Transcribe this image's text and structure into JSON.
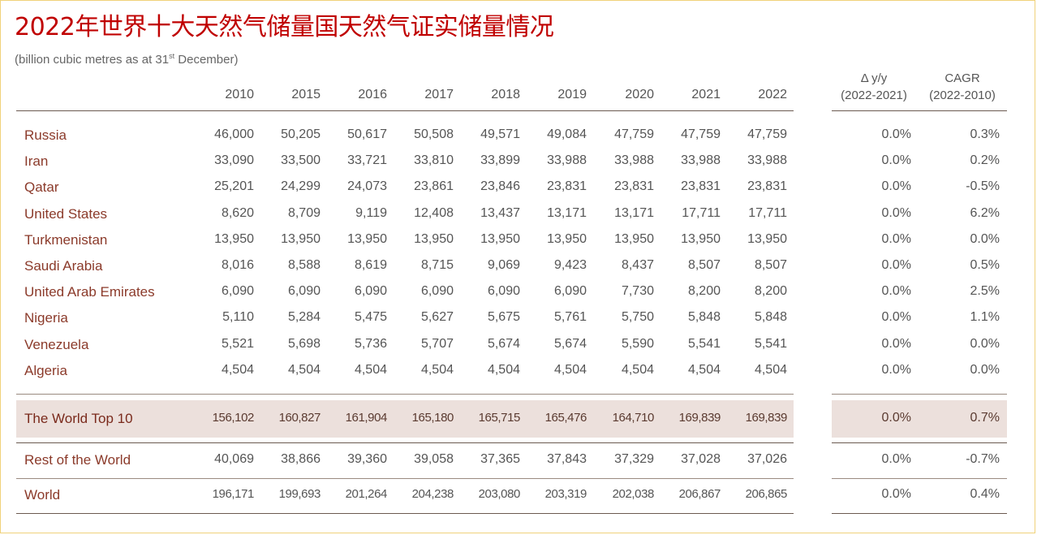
{
  "title": "2022年世界十大天然气储量国天然气证实储量情况",
  "subtitle": {
    "before": "(billion cubic metres as at 31",
    "sup": "st",
    "after": " December)"
  },
  "headers": {
    "years": [
      "2010",
      "2015",
      "2016",
      "2017",
      "2018",
      "2019",
      "2020",
      "2021",
      "2022"
    ],
    "yoy_line1": "Δ y/y",
    "yoy_line2": "(2022-2021)",
    "cagr_line1": "CAGR",
    "cagr_line2": "(2022-2010)"
  },
  "countries": [
    {
      "name": "Russia",
      "values": [
        "46,000",
        "50,205",
        "50,617",
        "50,508",
        "49,571",
        "49,084",
        "47,759",
        "47,759",
        "47,759"
      ],
      "yoy": "0.0%",
      "cagr": "0.3%"
    },
    {
      "name": "Iran",
      "values": [
        "33,090",
        "33,500",
        "33,721",
        "33,810",
        "33,899",
        "33,988",
        "33,988",
        "33,988",
        "33,988"
      ],
      "yoy": "0.0%",
      "cagr": "0.2%"
    },
    {
      "name": "Qatar",
      "values": [
        "25,201",
        "24,299",
        "24,073",
        "23,861",
        "23,846",
        "23,831",
        "23,831",
        "23,831",
        "23,831"
      ],
      "yoy": "0.0%",
      "cagr": "-0.5%"
    },
    {
      "name": "United States",
      "values": [
        "8,620",
        "8,709",
        "9,119",
        "12,408",
        "13,437",
        "13,171",
        "13,171",
        "17,711",
        "17,711"
      ],
      "yoy": "0.0%",
      "cagr": "6.2%"
    },
    {
      "name": "Turkmenistan",
      "values": [
        "13,950",
        "13,950",
        "13,950",
        "13,950",
        "13,950",
        "13,950",
        "13,950",
        "13,950",
        "13,950"
      ],
      "yoy": "0.0%",
      "cagr": "0.0%"
    },
    {
      "name": "Saudi Arabia",
      "values": [
        "8,016",
        "8,588",
        "8,619",
        "8,715",
        "9,069",
        "9,423",
        "8,437",
        "8,507",
        "8,507"
      ],
      "yoy": "0.0%",
      "cagr": "0.5%"
    },
    {
      "name": "United Arab Emirates",
      "values": [
        "6,090",
        "6,090",
        "6,090",
        "6,090",
        "6,090",
        "6,090",
        "7,730",
        "8,200",
        "8,200"
      ],
      "yoy": "0.0%",
      "cagr": "2.5%"
    },
    {
      "name": "Nigeria",
      "values": [
        "5,110",
        "5,284",
        "5,475",
        "5,627",
        "5,675",
        "5,761",
        "5,750",
        "5,848",
        "5,848"
      ],
      "yoy": "0.0%",
      "cagr": "1.1%"
    },
    {
      "name": "Venezuela",
      "values": [
        "5,521",
        "5,698",
        "5,736",
        "5,707",
        "5,674",
        "5,674",
        "5,590",
        "5,541",
        "5,541"
      ],
      "yoy": "0.0%",
      "cagr": "0.0%"
    },
    {
      "name": "Algeria",
      "values": [
        "4,504",
        "4,504",
        "4,504",
        "4,504",
        "4,504",
        "4,504",
        "4,504",
        "4,504",
        "4,504"
      ],
      "yoy": "0.0%",
      "cagr": "0.0%"
    }
  ],
  "top10": {
    "name": "The World Top 10",
    "values": [
      "156,102",
      "160,827",
      "161,904",
      "165,180",
      "165,715",
      "165,476",
      "164,710",
      "169,839",
      "169,839"
    ],
    "yoy": "0.0%",
    "cagr": "0.7%"
  },
  "rest": {
    "name": "Rest of the World",
    "values": [
      "40,069",
      "38,866",
      "39,360",
      "39,058",
      "37,365",
      "37,843",
      "37,329",
      "37,028",
      "37,026"
    ],
    "yoy": "0.0%",
    "cagr": "-0.7%"
  },
  "world": {
    "name": "World",
    "values": [
      "196,171",
      "199,693",
      "201,264",
      "204,238",
      "203,080",
      "203,319",
      "202,038",
      "206,867",
      "206,865"
    ],
    "yoy": "0.0%",
    "cagr": "0.4%"
  }
}
